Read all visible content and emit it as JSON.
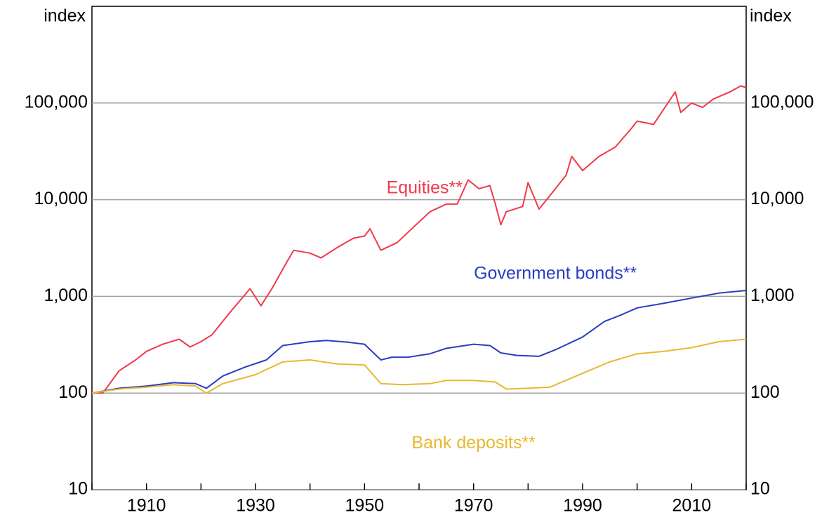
{
  "chart_data": {
    "type": "line",
    "scale": "log",
    "grid": true,
    "y_label": "index",
    "y2_label": "index",
    "xlim": [
      1900,
      2020
    ],
    "xticks": [
      1910,
      1930,
      1950,
      1970,
      1990,
      2010
    ],
    "xminor_ticks": [
      1900,
      1920,
      1940,
      1960,
      1980,
      2000,
      2020
    ],
    "ylim": [
      10,
      1000000
    ],
    "yticks": [
      10,
      100,
      {
        "value": 1000,
        "label": "1,000"
      },
      {
        "value": 10000,
        "label": "10,000"
      },
      {
        "value": 100000,
        "label": "100,000"
      }
    ],
    "y2lim": [
      10,
      1000000
    ],
    "y2ticks": [
      10,
      100,
      {
        "value": 1000,
        "label": "1,000"
      },
      {
        "value": 10000,
        "label": "10,000"
      },
      {
        "value": 100000,
        "label": "100,000"
      }
    ],
    "series": [
      {
        "name": "Equities**",
        "color": "#f0394a",
        "x": [
          1900,
          1902,
          1905,
          1908,
          1910,
          1913,
          1916,
          1918,
          1920,
          1922,
          1925,
          1929,
          1931,
          1933,
          1936,
          1937,
          1940,
          1942,
          1945,
          1948,
          1950,
          1951,
          1953,
          1956,
          1959,
          1962,
          1965,
          1967,
          1969,
          1971,
          1973,
          1974,
          1975,
          1976,
          1979,
          1980,
          1982,
          1984,
          1987,
          1988,
          1990,
          1993,
          1996,
          1999,
          2000,
          2003,
          2007,
          2008,
          2010,
          2012,
          2014,
          2017,
          2019,
          2020
        ],
        "values": [
          100,
          100,
          170,
          220,
          270,
          320,
          360,
          300,
          340,
          400,
          650,
          1200,
          800,
          1200,
          2400,
          3000,
          2800,
          2500,
          3200,
          4000,
          4200,
          5000,
          3000,
          3600,
          5200,
          7500,
          9000,
          9000,
          16000,
          13000,
          14000,
          9000,
          5500,
          7500,
          8500,
          15000,
          8000,
          11000,
          18000,
          28000,
          20000,
          28000,
          35000,
          55000,
          65000,
          60000,
          130000,
          80000,
          100000,
          90000,
          110000,
          130000,
          150000,
          145000
        ],
        "label_at": [
          1961,
          13000
        ]
      },
      {
        "name": "Government bonds**",
        "color": "#2a3dbf",
        "x": [
          1900,
          1905,
          1910,
          1915,
          1919,
          1921,
          1924,
          1928,
          1932,
          1935,
          1940,
          1943,
          1947,
          1950,
          1953,
          1955,
          1958,
          1962,
          1965,
          1970,
          1973,
          1975,
          1978,
          1982,
          1985,
          1990,
          1994,
          1997,
          2000,
          2005,
          2010,
          2015,
          2020
        ],
        "values": [
          100,
          112,
          118,
          128,
          125,
          112,
          150,
          185,
          220,
          310,
          340,
          350,
          335,
          320,
          220,
          235,
          235,
          255,
          290,
          320,
          310,
          260,
          245,
          240,
          280,
          380,
          550,
          640,
          760,
          850,
          960,
          1080,
          1150
        ],
        "label_at": [
          1985,
          1700
        ]
      },
      {
        "name": "Bank deposits**",
        "color": "#e8b830",
        "x": [
          1900,
          1905,
          1910,
          1915,
          1919,
          1921,
          1924,
          1930,
          1935,
          1940,
          1945,
          1950,
          1953,
          1957,
          1962,
          1965,
          1970,
          1974,
          1976,
          1980,
          1984,
          1990,
          1995,
          2000,
          2005,
          2010,
          2015,
          2020
        ],
        "values": [
          100,
          110,
          115,
          122,
          118,
          100,
          125,
          155,
          210,
          220,
          200,
          195,
          125,
          122,
          125,
          135,
          135,
          130,
          110,
          112,
          115,
          160,
          210,
          255,
          270,
          295,
          340,
          360
        ],
        "label_at": [
          1970,
          30
        ]
      }
    ]
  }
}
